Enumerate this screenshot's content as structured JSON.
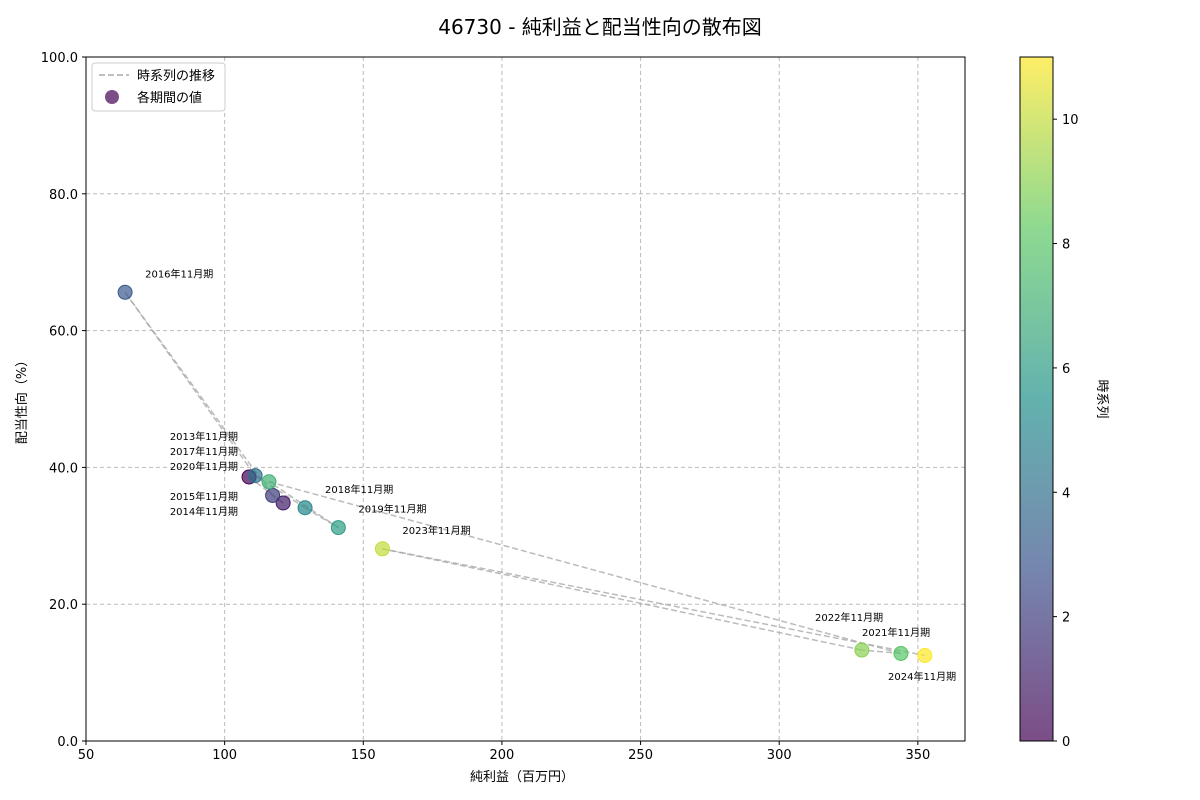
{
  "chart_data": {
    "type": "scatter",
    "title": "46730 - 純利益と配当性向の散布図",
    "xlabel": "純利益（百万円）",
    "ylabel": "配当性向（%）",
    "xlim": [
      50,
      367
    ],
    "ylim": [
      0,
      100
    ],
    "xticks": [
      50,
      100,
      150,
      200,
      250,
      300,
      350
    ],
    "yticks": [
      "0.0",
      "20.0",
      "40.0",
      "60.0",
      "80.0",
      "100.0"
    ],
    "grid": true,
    "legend": {
      "position": "top-left",
      "entries": [
        "時系列の推移",
        "各期間の値"
      ]
    },
    "colorbar": {
      "label": "時系列",
      "range": [
        0,
        11
      ],
      "ticks": [
        0,
        2,
        4,
        6,
        8,
        10
      ],
      "colormap": "viridis"
    },
    "points": [
      {
        "label": "2013年11月期",
        "x": 108.8,
        "y": 38.6,
        "t": 0
      },
      {
        "label": "2014年11月期",
        "x": 121.1,
        "y": 34.8,
        "t": 1
      },
      {
        "label": "2015年11月期",
        "x": 117.3,
        "y": 35.9,
        "t": 2
      },
      {
        "label": "2016年11月期",
        "x": 64.1,
        "y": 65.6,
        "t": 3
      },
      {
        "label": "2017年11月期",
        "x": 111.0,
        "y": 38.8,
        "t": 4
      },
      {
        "label": "2018年11月期",
        "x": 129.0,
        "y": 34.1,
        "t": 5
      },
      {
        "label": "2019年11月期",
        "x": 141.0,
        "y": 31.2,
        "t": 6
      },
      {
        "label": "2020年11月期",
        "x": 116.0,
        "y": 37.9,
        "t": 7
      },
      {
        "label": "2021年11月期",
        "x": 343.9,
        "y": 12.8,
        "t": 8
      },
      {
        "label": "2022年11月期",
        "x": 329.8,
        "y": 13.3,
        "t": 9
      },
      {
        "label": "2023年11月期",
        "x": 156.9,
        "y": 28.1,
        "t": 10
      },
      {
        "label": "2024年11月期",
        "x": 352.5,
        "y": 12.5,
        "t": 11
      }
    ]
  }
}
